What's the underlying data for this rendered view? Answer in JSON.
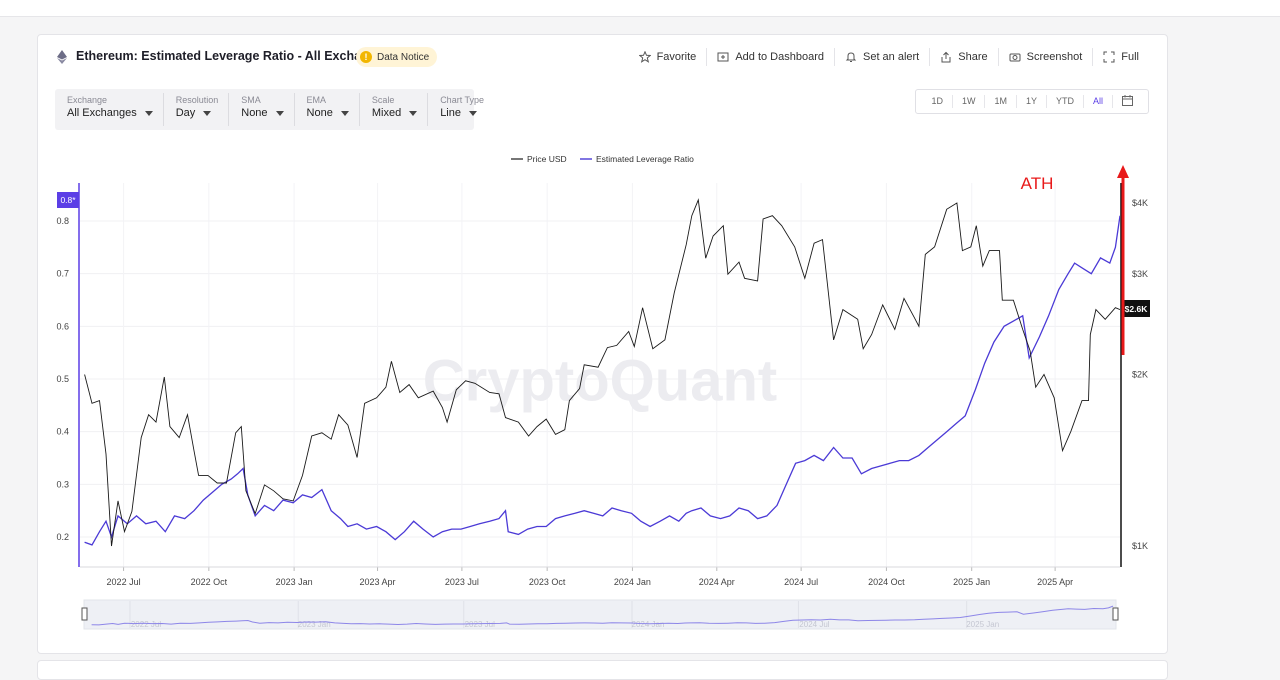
{
  "header": {
    "title": "Ethereum: Estimated Leverage Ratio - All Exchanges",
    "notice": "Data Notice",
    "actions": [
      {
        "label": "Favorite",
        "icon": "star-icon"
      },
      {
        "label": "Add to Dashboard",
        "icon": "dashboard-add-icon"
      },
      {
        "label": "Set an alert",
        "icon": "bell-icon"
      },
      {
        "label": "Share",
        "icon": "share-icon"
      },
      {
        "label": "Screenshot",
        "icon": "camera-icon"
      },
      {
        "label": "Full",
        "icon": "fullscreen-icon"
      }
    ]
  },
  "controls": [
    {
      "label": "Exchange",
      "value": "All Exchanges"
    },
    {
      "label": "Resolution",
      "value": "Day"
    },
    {
      "label": "SMA",
      "value": "None"
    },
    {
      "label": "EMA",
      "value": "None"
    },
    {
      "label": "Scale",
      "value": "Mixed"
    },
    {
      "label": "Chart Type",
      "value": "Line"
    }
  ],
  "ranges": [
    "1D",
    "1W",
    "1M",
    "1Y",
    "YTD",
    "All"
  ],
  "active_range": "All",
  "watermark": "CryptoQuant",
  "annotation": {
    "text": "ATH",
    "color": "#e8191a"
  },
  "colors": {
    "leverage": "#4b3ad6",
    "price": "#1a1a1a",
    "accent": "#5b3ee6"
  },
  "chart_data": {
    "type": "line",
    "legend_position": "top-center",
    "grid": true,
    "x_ticks": [
      "2022 Jul",
      "2022 Oct",
      "2023 Jan",
      "2023 Apr",
      "2023 Jul",
      "2023 Oct",
      "2024 Jan",
      "2024 Apr",
      "2024 Jul",
      "2024 Oct",
      "2025 Jan",
      "2025 Apr"
    ],
    "x_range": [
      "2022-05-15",
      "2025-06-10"
    ],
    "y_left": {
      "ticks": [
        0.2,
        0.3,
        0.4,
        0.5,
        0.6,
        0.7,
        0.8
      ],
      "range": [
        0.18,
        0.82
      ],
      "current_label": "0.8*"
    },
    "y_right": {
      "scale": "log",
      "ticks": [
        "$1K",
        "$2K",
        "$3K",
        "$4K"
      ],
      "tick_values": [
        1000,
        2000,
        3000,
        4000
      ],
      "range": [
        1000,
        4500
      ],
      "current_label": "$2.6K"
    },
    "series": [
      {
        "name": "Price USD",
        "axis": "right",
        "points": [
          [
            "2022-05-20",
            2000
          ],
          [
            "2022-05-28",
            1780
          ],
          [
            "2022-06-05",
            1800
          ],
          [
            "2022-06-12",
            1450
          ],
          [
            "2022-06-18",
            1000
          ],
          [
            "2022-06-25",
            1200
          ],
          [
            "2022-07-02",
            1060
          ],
          [
            "2022-07-10",
            1150
          ],
          [
            "2022-07-20",
            1550
          ],
          [
            "2022-07-28",
            1700
          ],
          [
            "2022-08-05",
            1650
          ],
          [
            "2022-08-14",
            1980
          ],
          [
            "2022-08-20",
            1620
          ],
          [
            "2022-08-30",
            1550
          ],
          [
            "2022-09-08",
            1700
          ],
          [
            "2022-09-15",
            1470
          ],
          [
            "2022-09-20",
            1330
          ],
          [
            "2022-09-30",
            1330
          ],
          [
            "2022-10-10",
            1290
          ],
          [
            "2022-10-20",
            1290
          ],
          [
            "2022-10-30",
            1580
          ],
          [
            "2022-11-05",
            1620
          ],
          [
            "2022-11-10",
            1250
          ],
          [
            "2022-11-20",
            1140
          ],
          [
            "2022-11-30",
            1280
          ],
          [
            "2022-12-10",
            1250
          ],
          [
            "2022-12-20",
            1210
          ],
          [
            "2022-12-31",
            1200
          ],
          [
            "2023-01-10",
            1330
          ],
          [
            "2023-01-20",
            1560
          ],
          [
            "2023-01-31",
            1580
          ],
          [
            "2023-02-10",
            1540
          ],
          [
            "2023-02-18",
            1700
          ],
          [
            "2023-02-28",
            1630
          ],
          [
            "2023-03-10",
            1430
          ],
          [
            "2023-03-18",
            1780
          ],
          [
            "2023-03-31",
            1820
          ],
          [
            "2023-04-10",
            1900
          ],
          [
            "2023-04-16",
            2110
          ],
          [
            "2023-04-25",
            1860
          ],
          [
            "2023-05-05",
            1920
          ],
          [
            "2023-05-15",
            1820
          ],
          [
            "2023-05-31",
            1870
          ],
          [
            "2023-06-10",
            1750
          ],
          [
            "2023-06-15",
            1650
          ],
          [
            "2023-06-25",
            1880
          ],
          [
            "2023-07-05",
            1950
          ],
          [
            "2023-07-15",
            1930
          ],
          [
            "2023-07-31",
            1860
          ],
          [
            "2023-08-10",
            1850
          ],
          [
            "2023-08-17",
            1680
          ],
          [
            "2023-08-31",
            1650
          ],
          [
            "2023-09-11",
            1560
          ],
          [
            "2023-09-20",
            1620
          ],
          [
            "2023-09-30",
            1670
          ],
          [
            "2023-10-10",
            1570
          ],
          [
            "2023-10-20",
            1600
          ],
          [
            "2023-10-25",
            1800
          ],
          [
            "2023-11-05",
            1890
          ],
          [
            "2023-11-10",
            2080
          ],
          [
            "2023-11-25",
            2060
          ],
          [
            "2023-12-05",
            2230
          ],
          [
            "2023-12-15",
            2250
          ],
          [
            "2023-12-28",
            2380
          ],
          [
            "2024-01-03",
            2240
          ],
          [
            "2024-01-12",
            2620
          ],
          [
            "2024-01-23",
            2220
          ],
          [
            "2024-02-05",
            2300
          ],
          [
            "2024-02-15",
            2780
          ],
          [
            "2024-02-28",
            3380
          ],
          [
            "2024-03-05",
            3800
          ],
          [
            "2024-03-12",
            4050
          ],
          [
            "2024-03-20",
            3200
          ],
          [
            "2024-03-28",
            3500
          ],
          [
            "2024-04-08",
            3650
          ],
          [
            "2024-04-13",
            3000
          ],
          [
            "2024-04-25",
            3150
          ],
          [
            "2024-05-01",
            2950
          ],
          [
            "2024-05-15",
            2920
          ],
          [
            "2024-05-21",
            3750
          ],
          [
            "2024-05-31",
            3800
          ],
          [
            "2024-06-10",
            3650
          ],
          [
            "2024-06-24",
            3350
          ],
          [
            "2024-07-05",
            2950
          ],
          [
            "2024-07-15",
            3400
          ],
          [
            "2024-07-24",
            3450
          ],
          [
            "2024-08-05",
            2300
          ],
          [
            "2024-08-15",
            2600
          ],
          [
            "2024-08-31",
            2500
          ],
          [
            "2024-09-06",
            2220
          ],
          [
            "2024-09-15",
            2350
          ],
          [
            "2024-09-27",
            2650
          ],
          [
            "2024-10-10",
            2400
          ],
          [
            "2024-10-20",
            2720
          ],
          [
            "2024-10-31",
            2520
          ],
          [
            "2024-11-05",
            2430
          ],
          [
            "2024-11-12",
            3250
          ],
          [
            "2024-11-22",
            3350
          ],
          [
            "2024-12-05",
            3900
          ],
          [
            "2024-12-16",
            4000
          ],
          [
            "2024-12-22",
            3300
          ],
          [
            "2024-12-31",
            3350
          ],
          [
            "2025-01-06",
            3650
          ],
          [
            "2025-01-13",
            3100
          ],
          [
            "2025-01-20",
            3300
          ],
          [
            "2025-01-31",
            3300
          ],
          [
            "2025-02-03",
            2700
          ],
          [
            "2025-02-15",
            2700
          ],
          [
            "2025-02-25",
            2400
          ],
          [
            "2025-03-05",
            2200
          ],
          [
            "2025-03-11",
            1900
          ],
          [
            "2025-03-20",
            2000
          ],
          [
            "2025-03-31",
            1820
          ],
          [
            "2025-04-09",
            1470
          ],
          [
            "2025-04-18",
            1590
          ],
          [
            "2025-04-30",
            1800
          ],
          [
            "2025-05-07",
            1800
          ],
          [
            "2025-05-09",
            2350
          ],
          [
            "2025-05-15",
            2600
          ],
          [
            "2025-05-25",
            2500
          ],
          [
            "2025-06-05",
            2620
          ],
          [
            "2025-06-10",
            2600
          ]
        ]
      },
      {
        "name": "Estimated Leverage Ratio",
        "axis": "left",
        "points": [
          [
            "2022-05-20",
            0.19
          ],
          [
            "2022-05-28",
            0.185
          ],
          [
            "2022-06-05",
            0.21
          ],
          [
            "2022-06-12",
            0.23
          ],
          [
            "2022-06-18",
            0.2
          ],
          [
            "2022-06-25",
            0.24
          ],
          [
            "2022-07-05",
            0.225
          ],
          [
            "2022-07-15",
            0.24
          ],
          [
            "2022-07-25",
            0.225
          ],
          [
            "2022-08-05",
            0.23
          ],
          [
            "2022-08-15",
            0.21
          ],
          [
            "2022-08-25",
            0.24
          ],
          [
            "2022-09-05",
            0.235
          ],
          [
            "2022-09-15",
            0.25
          ],
          [
            "2022-09-25",
            0.27
          ],
          [
            "2022-10-05",
            0.285
          ],
          [
            "2022-10-15",
            0.3
          ],
          [
            "2022-10-25",
            0.31
          ],
          [
            "2022-11-01",
            0.32
          ],
          [
            "2022-11-07",
            0.33
          ],
          [
            "2022-11-12",
            0.28
          ],
          [
            "2022-11-20",
            0.24
          ],
          [
            "2022-11-30",
            0.26
          ],
          [
            "2022-12-10",
            0.25
          ],
          [
            "2022-12-20",
            0.27
          ],
          [
            "2022-12-31",
            0.265
          ],
          [
            "2023-01-10",
            0.28
          ],
          [
            "2023-01-20",
            0.275
          ],
          [
            "2023-01-31",
            0.29
          ],
          [
            "2023-02-10",
            0.25
          ],
          [
            "2023-02-20",
            0.235
          ],
          [
            "2023-02-28",
            0.22
          ],
          [
            "2023-03-10",
            0.225
          ],
          [
            "2023-03-20",
            0.215
          ],
          [
            "2023-03-31",
            0.22
          ],
          [
            "2023-04-10",
            0.21
          ],
          [
            "2023-04-20",
            0.195
          ],
          [
            "2023-04-30",
            0.21
          ],
          [
            "2023-05-10",
            0.23
          ],
          [
            "2023-05-20",
            0.215
          ],
          [
            "2023-05-31",
            0.2
          ],
          [
            "2023-06-10",
            0.21
          ],
          [
            "2023-06-20",
            0.215
          ],
          [
            "2023-06-30",
            0.215
          ],
          [
            "2023-07-10",
            0.22
          ],
          [
            "2023-07-20",
            0.225
          ],
          [
            "2023-07-31",
            0.23
          ],
          [
            "2023-08-10",
            0.235
          ],
          [
            "2023-08-17",
            0.25
          ],
          [
            "2023-08-20",
            0.21
          ],
          [
            "2023-08-31",
            0.205
          ],
          [
            "2023-09-10",
            0.215
          ],
          [
            "2023-09-20",
            0.22
          ],
          [
            "2023-09-30",
            0.22
          ],
          [
            "2023-10-10",
            0.235
          ],
          [
            "2023-10-20",
            0.24
          ],
          [
            "2023-10-31",
            0.245
          ],
          [
            "2023-11-10",
            0.25
          ],
          [
            "2023-11-20",
            0.245
          ],
          [
            "2023-11-30",
            0.24
          ],
          [
            "2023-12-10",
            0.255
          ],
          [
            "2023-12-20",
            0.25
          ],
          [
            "2023-12-31",
            0.245
          ],
          [
            "2024-01-10",
            0.23
          ],
          [
            "2024-01-20",
            0.22
          ],
          [
            "2024-01-31",
            0.23
          ],
          [
            "2024-02-10",
            0.24
          ],
          [
            "2024-02-20",
            0.23
          ],
          [
            "2024-02-28",
            0.245
          ],
          [
            "2024-03-05",
            0.25
          ],
          [
            "2024-03-15",
            0.255
          ],
          [
            "2024-03-25",
            0.24
          ],
          [
            "2024-04-05",
            0.235
          ],
          [
            "2024-04-15",
            0.24
          ],
          [
            "2024-04-25",
            0.255
          ],
          [
            "2024-05-05",
            0.25
          ],
          [
            "2024-05-15",
            0.235
          ],
          [
            "2024-05-25",
            0.24
          ],
          [
            "2024-06-05",
            0.26
          ],
          [
            "2024-06-15",
            0.3
          ],
          [
            "2024-06-25",
            0.34
          ],
          [
            "2024-07-05",
            0.345
          ],
          [
            "2024-07-15",
            0.355
          ],
          [
            "2024-07-25",
            0.345
          ],
          [
            "2024-08-05",
            0.37
          ],
          [
            "2024-08-15",
            0.35
          ],
          [
            "2024-08-25",
            0.35
          ],
          [
            "2024-09-04",
            0.32
          ],
          [
            "2024-09-15",
            0.33
          ],
          [
            "2024-09-25",
            0.335
          ],
          [
            "2024-10-05",
            0.34
          ],
          [
            "2024-10-15",
            0.345
          ],
          [
            "2024-10-25",
            0.345
          ],
          [
            "2024-11-05",
            0.355
          ],
          [
            "2024-11-15",
            0.37
          ],
          [
            "2024-11-25",
            0.385
          ],
          [
            "2024-12-05",
            0.4
          ],
          [
            "2024-12-15",
            0.415
          ],
          [
            "2024-12-25",
            0.43
          ],
          [
            "2025-01-05",
            0.48
          ],
          [
            "2025-01-15",
            0.53
          ],
          [
            "2025-01-25",
            0.57
          ],
          [
            "2025-02-05",
            0.6
          ],
          [
            "2025-02-15",
            0.61
          ],
          [
            "2025-02-25",
            0.62
          ],
          [
            "2025-03-04",
            0.54
          ],
          [
            "2025-03-15",
            0.58
          ],
          [
            "2025-03-25",
            0.62
          ],
          [
            "2025-04-05",
            0.67
          ],
          [
            "2025-04-15",
            0.7
          ],
          [
            "2025-04-22",
            0.72
          ],
          [
            "2025-05-01",
            0.71
          ],
          [
            "2025-05-10",
            0.7
          ],
          [
            "2025-05-20",
            0.73
          ],
          [
            "2025-05-30",
            0.72
          ],
          [
            "2025-06-05",
            0.75
          ],
          [
            "2025-06-10",
            0.81
          ]
        ]
      }
    ]
  }
}
